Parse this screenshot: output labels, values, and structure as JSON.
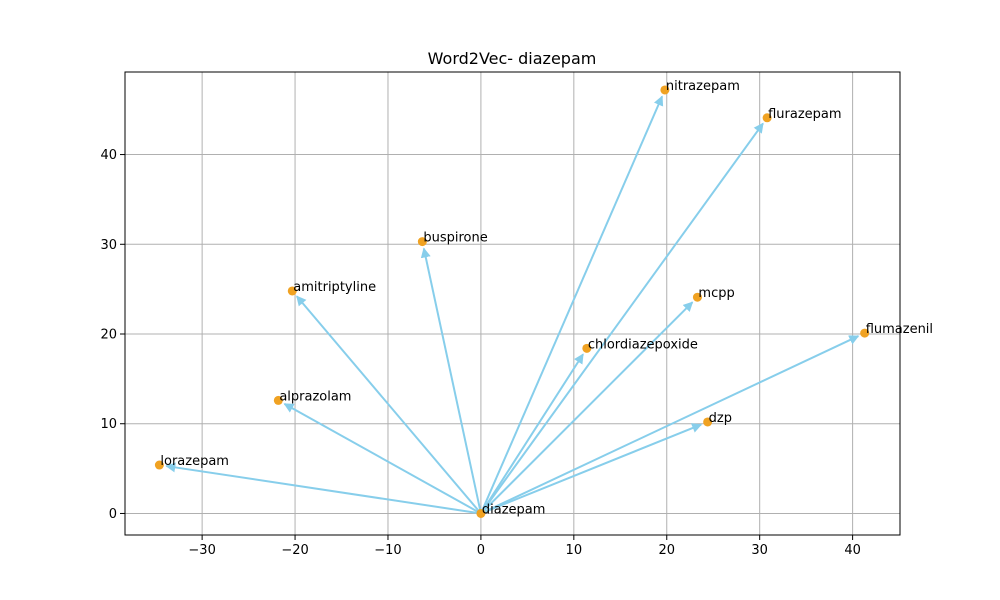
{
  "chart_data": {
    "type": "scatter",
    "title": "Word2Vec- diazepam",
    "xlabel": "",
    "ylabel": "",
    "xlim": [
      -38.3,
      45.1
    ],
    "ylim": [
      -2.4,
      49.2
    ],
    "xticks": [
      -30,
      -20,
      -10,
      0,
      10,
      20,
      30,
      40
    ],
    "yticks": [
      0,
      10,
      20,
      30,
      40
    ],
    "grid": true,
    "origin": {
      "label": "diazepam",
      "x": 0,
      "y": 0
    },
    "points": [
      {
        "label": "nitrazepam",
        "x": 19.8,
        "y": 47.2
      },
      {
        "label": "flurazepam",
        "x": 30.8,
        "y": 44.1
      },
      {
        "label": "buspirone",
        "x": -6.3,
        "y": 30.3
      },
      {
        "label": "amitriptyline",
        "x": -20.3,
        "y": 24.8
      },
      {
        "label": "mcpp",
        "x": 23.3,
        "y": 24.1
      },
      {
        "label": "flumazenil",
        "x": 41.3,
        "y": 20.1
      },
      {
        "label": "chlordiazepoxide",
        "x": 11.4,
        "y": 18.4
      },
      {
        "label": "alprazolam",
        "x": -21.8,
        "y": 12.6
      },
      {
        "label": "dzp",
        "x": 24.4,
        "y": 10.2
      },
      {
        "label": "lorazepam",
        "x": -34.6,
        "y": 5.4
      }
    ],
    "colors": {
      "point": "#f0a222",
      "arrow": "#87ceeb",
      "grid": "#b0b0b0"
    }
  }
}
